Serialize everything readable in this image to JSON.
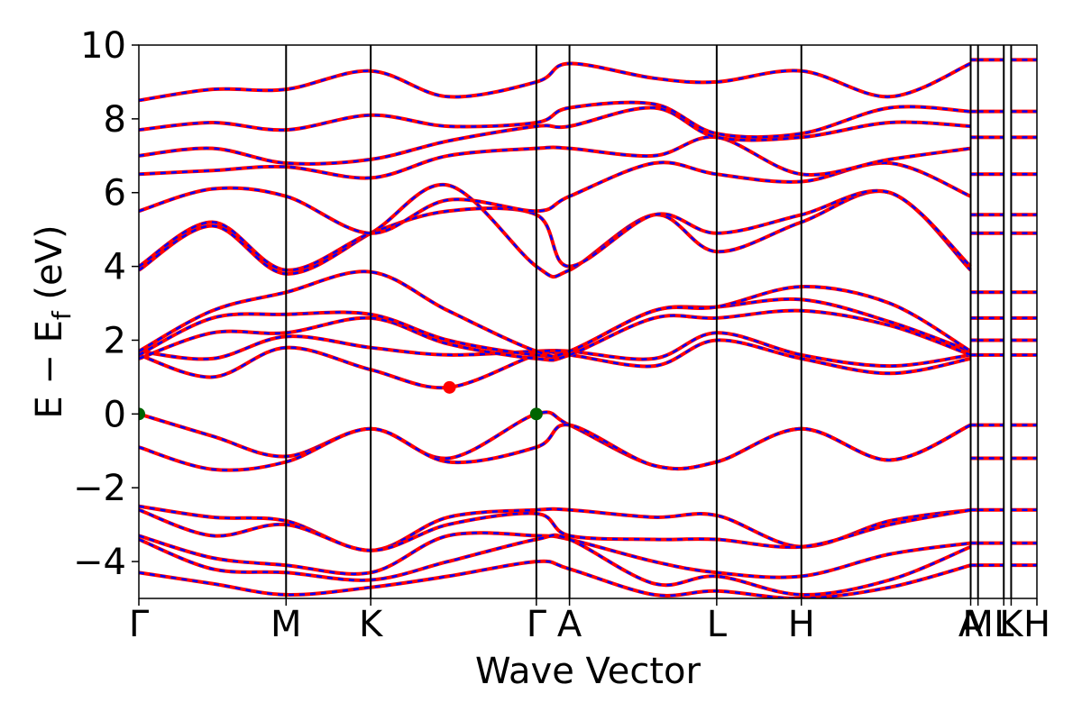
{
  "chart_data": {
    "type": "line",
    "title": "",
    "xlabel": "Wave Vector",
    "ylabel": "E − E",
    "ylabel_sub": "f",
    "ylabel_unit": " (eV)",
    "ylim": [
      -5,
      10
    ],
    "yticks": [
      -4,
      -2,
      0,
      2,
      4,
      6,
      8,
      10
    ],
    "ytick_labels": [
      "−4",
      "−2",
      "0",
      "2",
      "4",
      "6",
      "8",
      "10"
    ],
    "xlim": [
      0,
      12.2
    ],
    "kpoints": [
      {
        "label": "Γ",
        "x": 0.0
      },
      {
        "label": "M",
        "x": 2.0
      },
      {
        "label": "K",
        "x": 3.15
      },
      {
        "label": "Γ",
        "x": 5.4
      },
      {
        "label": "A",
        "x": 5.85
      },
      {
        "label": "L",
        "x": 7.85
      },
      {
        "label": "H",
        "x": 9.0
      },
      {
        "label": "A",
        "x": 11.3
      },
      {
        "label": "M",
        "x": 11.4
      },
      {
        "label": "L",
        "x": 11.75
      },
      {
        "label": "K",
        "x": 11.85
      },
      {
        "label": "H",
        "x": 12.2
      }
    ],
    "band_colors": {
      "overlay": "#ff0000",
      "dashed_under": "#0000ff"
    },
    "markers": [
      {
        "name": "VBM",
        "x": 0.0,
        "y": 0.0,
        "color": "#006400"
      },
      {
        "name": "VBM",
        "x": 5.4,
        "y": 0.0,
        "color": "#006400"
      },
      {
        "name": "CBM",
        "x": 4.22,
        "y": 0.72,
        "color": "#ff0000"
      }
    ],
    "series": [
      {
        "x": [
          0,
          1.0,
          2.0,
          3.15,
          4.2,
          5.4,
          5.85,
          7.0,
          7.85,
          9.0,
          10.2,
          11.3
        ],
        "values": [
          0.0,
          -0.6,
          -1.15,
          -0.4,
          -1.2,
          0.0,
          -0.3,
          -1.4,
          -1.3,
          -0.4,
          -1.25,
          -0.3
        ]
      },
      {
        "x": [
          0,
          1.0,
          2.0,
          3.15,
          4.2,
          5.4,
          5.85,
          7.0,
          7.85,
          9.0,
          10.2,
          11.3
        ],
        "values": [
          -0.9,
          -1.5,
          -1.3,
          -0.4,
          -1.3,
          -0.9,
          -0.3,
          -1.4,
          -1.3,
          -0.4,
          -1.25,
          -0.3
        ]
      },
      {
        "x": [
          0,
          1.0,
          2.0,
          3.15,
          4.2,
          5.4,
          5.85,
          7.0,
          7.85,
          9.0,
          10.2,
          11.3
        ],
        "values": [
          1.6,
          1.0,
          1.8,
          1.2,
          0.72,
          1.6,
          1.6,
          1.3,
          2.0,
          1.5,
          1.1,
          1.5
        ]
      },
      {
        "x": [
          0,
          1.0,
          2.0,
          3.15,
          4.2,
          5.4,
          5.85,
          7.0,
          7.85,
          9.0,
          10.2,
          11.3
        ],
        "values": [
          1.7,
          1.5,
          2.1,
          1.8,
          1.6,
          1.7,
          1.7,
          1.5,
          2.2,
          1.6,
          1.3,
          1.6
        ]
      },
      {
        "x": [
          0,
          1.0,
          2.0,
          3.15,
          4.2,
          5.4,
          5.85,
          7.0,
          7.85,
          9.0,
          10.2,
          11.3
        ],
        "values": [
          1.5,
          2.2,
          2.2,
          2.6,
          1.9,
          1.5,
          1.6,
          2.6,
          2.6,
          2.8,
          2.4,
          1.6
        ]
      },
      {
        "x": [
          0,
          1.0,
          2.0,
          3.15,
          4.2,
          5.4,
          5.85,
          7.0,
          7.85,
          9.0,
          10.2,
          11.3
        ],
        "values": [
          1.6,
          2.6,
          2.7,
          2.7,
          2.0,
          1.6,
          1.7,
          2.8,
          2.9,
          3.1,
          2.5,
          1.7
        ]
      },
      {
        "x": [
          0,
          1.0,
          2.0,
          3.15,
          4.2,
          5.4,
          5.85,
          7.0,
          7.85,
          9.0,
          10.2,
          11.3
        ],
        "values": [
          1.7,
          2.8,
          3.3,
          3.85,
          2.8,
          1.7,
          1.7,
          2.8,
          2.9,
          3.45,
          3.0,
          1.7
        ]
      },
      {
        "x": [
          0,
          1.0,
          2.0,
          3.15,
          4.2,
          5.4,
          5.85,
          7.0,
          7.85,
          9.0,
          10.2,
          11.3
        ],
        "values": [
          3.9,
          5.1,
          3.8,
          4.9,
          6.2,
          4.0,
          3.9,
          5.4,
          4.4,
          5.2,
          6.0,
          3.9
        ]
      },
      {
        "x": [
          0,
          1.0,
          2.0,
          3.15,
          4.2,
          5.4,
          5.85,
          7.0,
          7.85,
          9.0,
          10.2,
          11.3
        ],
        "values": [
          4.0,
          5.2,
          3.9,
          4.9,
          5.5,
          5.4,
          4.0,
          5.4,
          4.9,
          5.4,
          6.0,
          4.0
        ]
      },
      {
        "x": [
          0,
          1.0,
          2.0,
          3.15,
          4.2,
          5.4,
          5.85,
          7.0,
          7.85,
          9.0,
          10.2,
          11.3
        ],
        "values": [
          5.5,
          6.1,
          5.9,
          4.9,
          5.8,
          5.5,
          5.9,
          6.8,
          6.5,
          6.3,
          6.8,
          5.9
        ]
      },
      {
        "x": [
          0,
          1.0,
          2.0,
          3.15,
          4.2,
          5.4,
          5.85,
          7.0,
          7.85,
          9.0,
          10.2,
          11.3
        ],
        "values": [
          6.5,
          6.6,
          6.7,
          6.4,
          7.0,
          7.2,
          7.2,
          7.0,
          7.5,
          6.5,
          6.9,
          7.2
        ]
      },
      {
        "x": [
          0,
          1.0,
          2.0,
          3.15,
          4.2,
          5.4,
          5.85,
          7.0,
          7.85,
          9.0,
          10.2,
          11.3
        ],
        "values": [
          7.0,
          7.2,
          6.8,
          6.9,
          7.4,
          7.8,
          7.8,
          8.3,
          7.5,
          7.5,
          7.9,
          7.8
        ]
      },
      {
        "x": [
          0,
          1.0,
          2.0,
          3.15,
          4.2,
          5.4,
          5.85,
          7.0,
          7.85,
          9.0,
          10.2,
          11.3
        ],
        "values": [
          7.7,
          7.9,
          7.7,
          8.1,
          7.8,
          7.9,
          8.3,
          8.4,
          7.6,
          7.6,
          8.3,
          8.2
        ]
      },
      {
        "x": [
          0,
          1.0,
          2.0,
          3.15,
          4.2,
          5.4,
          5.85,
          7.0,
          7.85,
          9.0,
          10.2,
          11.3
        ],
        "values": [
          8.5,
          8.8,
          8.8,
          9.3,
          8.6,
          9.0,
          9.5,
          9.1,
          9.0,
          9.3,
          8.6,
          9.5
        ]
      },
      {
        "x": [
          0,
          1.0,
          2.0,
          3.15,
          4.2,
          5.4,
          5.85,
          7.0,
          7.85,
          9.0,
          10.2,
          11.3
        ],
        "values": [
          -2.5,
          -2.8,
          -2.9,
          -3.7,
          -2.8,
          -2.6,
          -2.6,
          -2.8,
          -2.75,
          -3.6,
          -2.9,
          -2.6
        ]
      },
      {
        "x": [
          0,
          1.0,
          2.0,
          3.15,
          4.2,
          5.4,
          5.85,
          7.0,
          7.85,
          9.0,
          10.2,
          11.3
        ],
        "values": [
          -2.6,
          -3.3,
          -3.0,
          -3.7,
          -3.0,
          -2.7,
          -3.3,
          -3.4,
          -3.4,
          -3.6,
          -3.0,
          -2.6
        ]
      },
      {
        "x": [
          0,
          1.0,
          2.0,
          3.15,
          4.2,
          5.4,
          5.85,
          7.0,
          7.85,
          9.0,
          10.2,
          11.3
        ],
        "values": [
          -3.3,
          -3.9,
          -4.1,
          -4.3,
          -3.3,
          -3.3,
          -3.4,
          -4.0,
          -4.3,
          -4.4,
          -3.8,
          -3.5
        ]
      },
      {
        "x": [
          0,
          1.0,
          2.0,
          3.15,
          4.2,
          5.4,
          5.85,
          7.0,
          7.85,
          9.0,
          10.2,
          11.3
        ],
        "values": [
          -3.4,
          -4.2,
          -4.3,
          -4.5,
          -4.0,
          -3.4,
          -3.4,
          -4.6,
          -4.4,
          -4.9,
          -4.5,
          -3.6
        ]
      },
      {
        "x": [
          0,
          1.0,
          2.0,
          3.15,
          4.2,
          5.4,
          5.85,
          7.0,
          7.85,
          9.0,
          10.2,
          11.3
        ],
        "values": [
          -4.3,
          -4.6,
          -4.9,
          -4.7,
          -4.4,
          -4.0,
          -4.2,
          -4.9,
          -4.8,
          -5.0,
          -4.7,
          -4.1
        ]
      }
    ],
    "short_segment_levels": [
      -4.1,
      -3.5,
      -2.6,
      -1.2,
      -0.3,
      1.6,
      2.0,
      2.6,
      3.3,
      4.9,
      5.4,
      6.5,
      7.5,
      8.2,
      9.6
    ]
  }
}
